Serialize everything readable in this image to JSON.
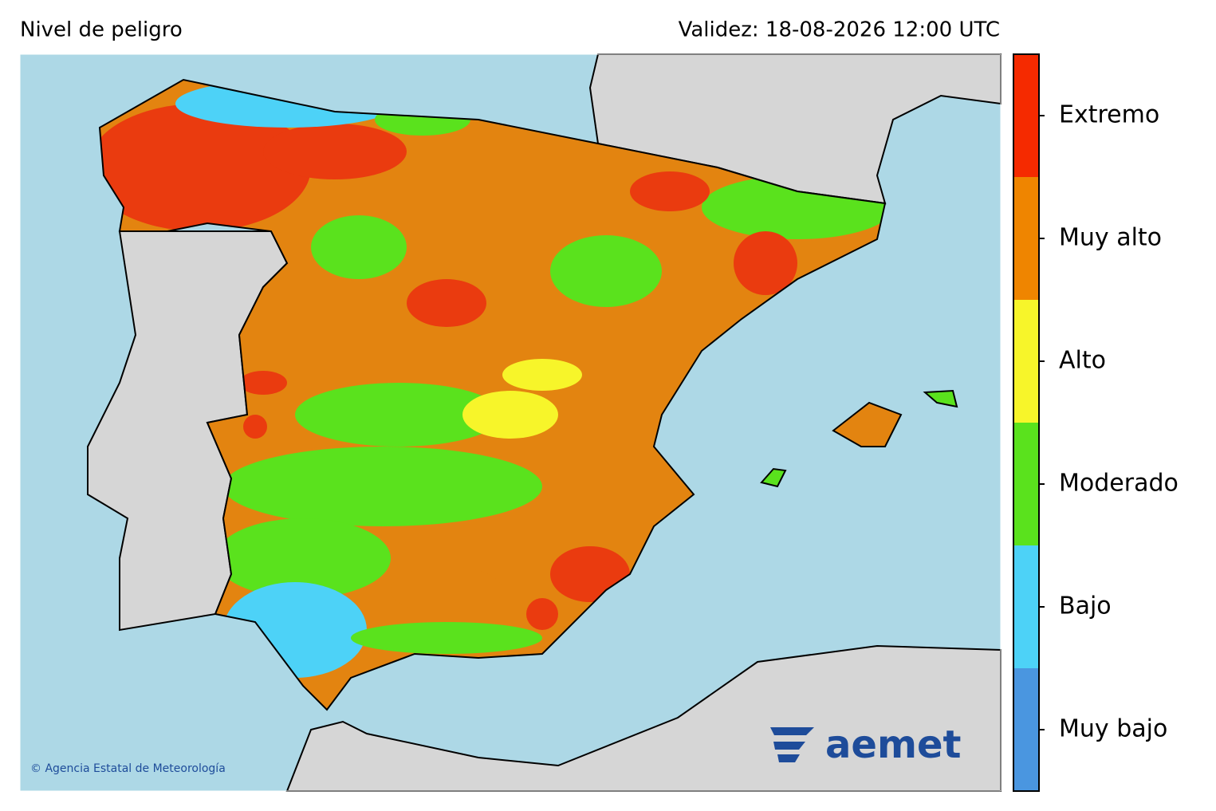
{
  "header": {
    "title": "Nivel de peligro",
    "validity": "Validez: 18-08-2026 12:00 UTC"
  },
  "legend": {
    "levels": [
      {
        "label": "Extremo",
        "color": "#f52a00"
      },
      {
        "label": "Muy alto",
        "color": "#ef8500"
      },
      {
        "label": "Alto",
        "color": "#f7f52a"
      },
      {
        "label": "Moderado",
        "color": "#5ae21d"
      },
      {
        "label": "Bajo",
        "color": "#4dd2f7"
      },
      {
        "label": "Muy bajo",
        "color": "#4a96e0"
      }
    ]
  },
  "credit": "© Agencia Estatal de Meteorología",
  "logo": "aemet"
}
